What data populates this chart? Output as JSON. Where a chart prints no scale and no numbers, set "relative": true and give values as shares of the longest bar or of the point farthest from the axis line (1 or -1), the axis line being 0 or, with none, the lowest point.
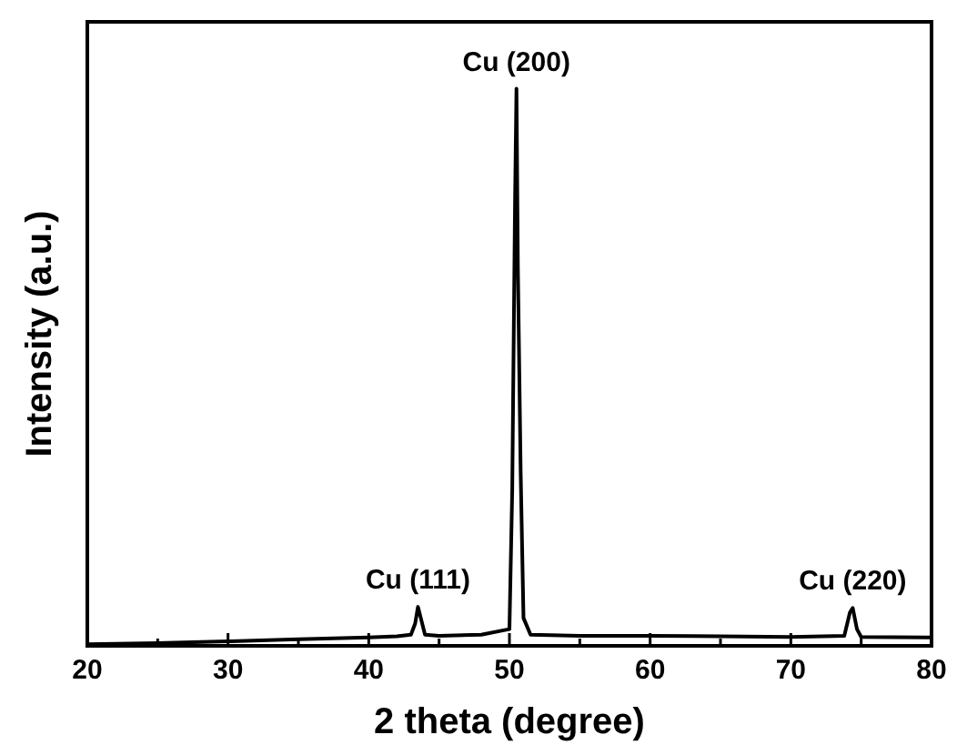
{
  "chart_data": {
    "type": "line",
    "xlabel": "2 theta (degree)",
    "ylabel": "Intensity (a.u.)",
    "relative": true,
    "xlim": [
      20,
      80
    ],
    "xticks": [
      20,
      {
        "value": 25,
        "label": null
      },
      30,
      {
        "value": 35,
        "label": null
      },
      40,
      {
        "value": 45,
        "label": null
      },
      50,
      {
        "value": 55,
        "label": null
      },
      60,
      {
        "value": 65,
        "label": null
      },
      70,
      {
        "value": 75,
        "label": null
      },
      80
    ],
    "series": [
      {
        "color": "#000000",
        "x": [
          20,
          25,
          30,
          35,
          40,
          42,
          43,
          43.3,
          43.5,
          43.7,
          44,
          45,
          48,
          50,
          50.2,
          50.4,
          50.5,
          50.6,
          50.8,
          51,
          51.5,
          55,
          60,
          65,
          70,
          73.8,
          74.2,
          74.4,
          74.7,
          75,
          80
        ],
        "values": [
          0.003,
          0.005,
          0.008,
          0.012,
          0.015,
          0.017,
          0.02,
          0.04,
          0.07,
          0.05,
          0.02,
          0.018,
          0.02,
          0.03,
          0.28,
          0.8,
          1,
          0.68,
          0.31,
          0.05,
          0.02,
          0.018,
          0.018,
          0.017,
          0.016,
          0.018,
          0.06,
          0.068,
          0.03,
          0.016,
          0.015
        ]
      }
    ],
    "annotations": [
      {
        "text": "Cu (111)",
        "x": 43.5,
        "y": 0.07
      },
      {
        "text": "Cu (200)",
        "x": 50.5,
        "y": 1
      },
      {
        "text": "Cu (220)",
        "x": 74.4,
        "y": 0.068
      }
    ],
    "line_style": "solid",
    "marker": "none"
  }
}
